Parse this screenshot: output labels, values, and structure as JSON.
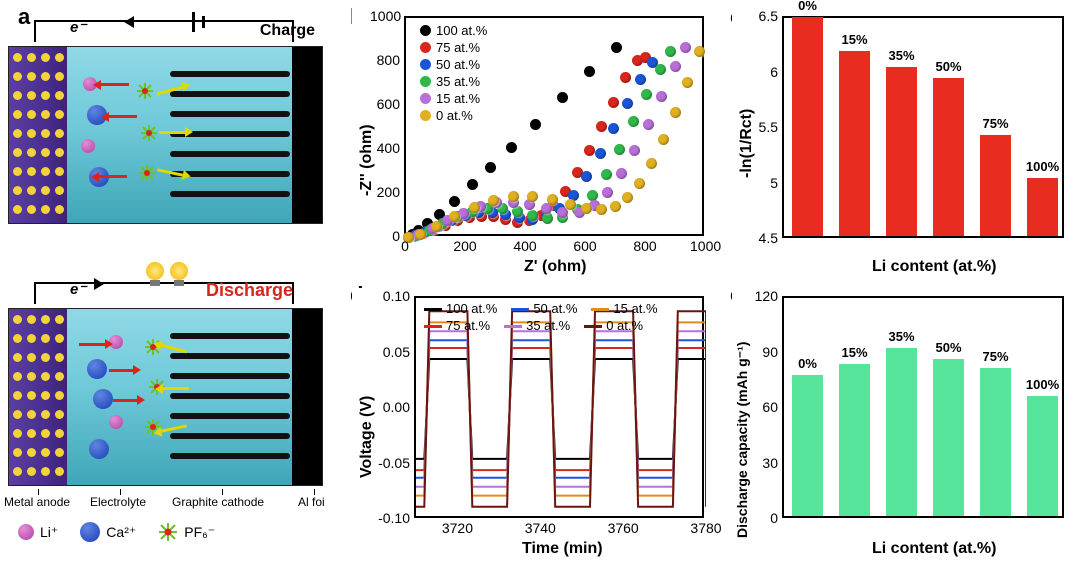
{
  "panel_labels": {
    "a": "a",
    "b": "b",
    "c": "c",
    "d": "d",
    "e": "e"
  },
  "panel_a": {
    "e_minus": "e⁻",
    "charge_text": "Charge",
    "discharge_text": "Discharge",
    "bottom_labels": {
      "anode": "Metal anode",
      "electrolyte": "Electrolyte",
      "cathode": "Graphite cathode",
      "al": "Al foi"
    },
    "legend": {
      "li": "Li⁺",
      "ca": "Ca²⁺",
      "pf6": "PF₆⁻"
    },
    "colors": {
      "anode": "#4b2f90",
      "electrolyte": "#6fc9d8",
      "al": "#000000",
      "li": "#b23fa6",
      "ca": "#1a3db8",
      "pf6_center": "#d8261c",
      "pf6_arm": "#6bc22a",
      "arrow_yellow": "#e0d800",
      "arrow_red": "#d8261c"
    }
  },
  "panel_b": {
    "type": "scatter-nyquist",
    "xlabel": "Z' (ohm)",
    "ylabel": "-Z'' (ohm)",
    "xlim": [
      0,
      1000
    ],
    "ylim": [
      0,
      1000
    ],
    "xticks": [
      0,
      200,
      400,
      600,
      800,
      1000
    ],
    "yticks": [
      0,
      200,
      400,
      600,
      800,
      1000
    ],
    "series": [
      {
        "name": "100 at.%",
        "color": "#000000",
        "points": [
          [
            5,
            5
          ],
          [
            20,
            18
          ],
          [
            40,
            38
          ],
          [
            70,
            68
          ],
          [
            110,
            110
          ],
          [
            160,
            170
          ],
          [
            220,
            245
          ],
          [
            280,
            325
          ],
          [
            350,
            415
          ],
          [
            430,
            520
          ],
          [
            520,
            640
          ],
          [
            610,
            760
          ],
          [
            700,
            870
          ]
        ]
      },
      {
        "name": "75 at.%",
        "color": "#d8261c",
        "points": [
          [
            5,
            3
          ],
          [
            25,
            10
          ],
          [
            55,
            22
          ],
          [
            90,
            40
          ],
          [
            130,
            60
          ],
          [
            170,
            80
          ],
          [
            210,
            95
          ],
          [
            250,
            102
          ],
          [
            290,
            98
          ],
          [
            330,
            85
          ],
          [
            370,
            75
          ],
          [
            410,
            80
          ],
          [
            450,
            105
          ],
          [
            490,
            150
          ],
          [
            530,
            215
          ],
          [
            570,
            300
          ],
          [
            610,
            400
          ],
          [
            650,
            510
          ],
          [
            690,
            620
          ],
          [
            730,
            730
          ],
          [
            770,
            810
          ],
          [
            795,
            825
          ]
        ]
      },
      {
        "name": "50 at.%",
        "color": "#1a55d8",
        "points": [
          [
            5,
            3
          ],
          [
            30,
            12
          ],
          [
            65,
            30
          ],
          [
            105,
            55
          ],
          [
            150,
            82
          ],
          [
            195,
            105
          ],
          [
            240,
            118
          ],
          [
            285,
            120
          ],
          [
            330,
            110
          ],
          [
            375,
            95
          ],
          [
            420,
            88
          ],
          [
            465,
            100
          ],
          [
            510,
            135
          ],
          [
            555,
            195
          ],
          [
            600,
            280
          ],
          [
            645,
            385
          ],
          [
            690,
            500
          ],
          [
            735,
            615
          ],
          [
            780,
            725
          ],
          [
            820,
            800
          ]
        ]
      },
      {
        "name": "35 at.%",
        "color": "#2fb84a",
        "points": [
          [
            5,
            3
          ],
          [
            35,
            15
          ],
          [
            75,
            38
          ],
          [
            120,
            68
          ],
          [
            170,
            100
          ],
          [
            220,
            125
          ],
          [
            270,
            138
          ],
          [
            320,
            138
          ],
          [
            370,
            125
          ],
          [
            420,
            105
          ],
          [
            470,
            90
          ],
          [
            520,
            95
          ],
          [
            570,
            130
          ],
          [
            620,
            195
          ],
          [
            665,
            290
          ],
          [
            710,
            405
          ],
          [
            755,
            530
          ],
          [
            800,
            655
          ],
          [
            845,
            770
          ],
          [
            880,
            850
          ]
        ]
      },
      {
        "name": "15 at.%",
        "color": "#b86fd8",
        "points": [
          [
            5,
            3
          ],
          [
            40,
            18
          ],
          [
            85,
            45
          ],
          [
            135,
            80
          ],
          [
            190,
            115
          ],
          [
            245,
            145
          ],
          [
            300,
            162
          ],
          [
            355,
            165
          ],
          [
            410,
            155
          ],
          [
            465,
            135
          ],
          [
            520,
            118
          ],
          [
            575,
            120
          ],
          [
            625,
            150
          ],
          [
            670,
            210
          ],
          [
            715,
            295
          ],
          [
            760,
            400
          ],
          [
            805,
            520
          ],
          [
            850,
            645
          ],
          [
            895,
            780
          ],
          [
            930,
            870
          ]
        ]
      },
      {
        "name": "0 at.%",
        "color": "#e0b020",
        "points": [
          [
            5,
            3
          ],
          [
            45,
            20
          ],
          [
            100,
            55
          ],
          [
            160,
            98
          ],
          [
            225,
            140
          ],
          [
            290,
            172
          ],
          [
            355,
            190
          ],
          [
            420,
            192
          ],
          [
            485,
            178
          ],
          [
            545,
            155
          ],
          [
            600,
            135
          ],
          [
            650,
            130
          ],
          [
            695,
            145
          ],
          [
            735,
            185
          ],
          [
            775,
            250
          ],
          [
            815,
            340
          ],
          [
            855,
            450
          ],
          [
            895,
            575
          ],
          [
            935,
            710
          ],
          [
            975,
            850
          ]
        ]
      }
    ]
  },
  "panel_c": {
    "type": "bar",
    "xlabel": "Li content (at.%)",
    "ylabel": "-ln(1/Rct)",
    "ylim": [
      4.5,
      6.5
    ],
    "yticks": [
      4.5,
      5.0,
      5.5,
      6.0,
      6.5
    ],
    "bar_color": "#e82c1f",
    "categories": [
      "0%",
      "15%",
      "35%",
      "50%",
      "75%",
      "100%"
    ],
    "values": [
      6.47,
      6.17,
      6.02,
      5.92,
      5.41,
      5.02
    ]
  },
  "panel_d": {
    "type": "line",
    "xlabel": "Time (min)",
    "ylabel": "Voltage (V)",
    "xlim": [
      3710,
      3780
    ],
    "xticks": [
      3720,
      3740,
      3760,
      3780
    ],
    "ylim": [
      -0.1,
      0.1
    ],
    "yticks": [
      -0.1,
      -0.05,
      0.0,
      0.05,
      0.1
    ],
    "legend": [
      {
        "name": "100 at.%",
        "color": "#000000"
      },
      {
        "name": "75 at.%",
        "color": "#d8261c"
      },
      {
        "name": "50 at.%",
        "color": "#1a55d8"
      },
      {
        "name": "35 at.%",
        "color": "#b86fd8"
      },
      {
        "name": "15 at.%",
        "color": "#e08a20"
      },
      {
        "name": "0 at.%",
        "color": "#6a1410"
      }
    ],
    "series": [
      {
        "color": "#000000",
        "hi": 0.045,
        "lo": -0.045
      },
      {
        "color": "#d8261c",
        "hi": 0.055,
        "lo": -0.055
      },
      {
        "color": "#1a55d8",
        "hi": 0.062,
        "lo": -0.062
      },
      {
        "color": "#b86fd8",
        "hi": 0.07,
        "lo": -0.07
      },
      {
        "color": "#e08a20",
        "hi": 0.078,
        "lo": -0.078
      },
      {
        "color": "#6a1410",
        "hi": 0.088,
        "lo": -0.088
      }
    ],
    "period": 20,
    "duty": 0.52,
    "rise": 1.2
  },
  "panel_e": {
    "type": "bar",
    "xlabel": "Li content (at.%)",
    "ylabel": "Discharge capacity (mAh g⁻¹)",
    "ylim": [
      0,
      120
    ],
    "yticks": [
      0,
      30,
      60,
      90,
      120
    ],
    "bar_color": "#57e59b",
    "categories": [
      "0%",
      "15%",
      "35%",
      "50%",
      "75%",
      "100%"
    ],
    "values": [
      76,
      82,
      91,
      85,
      80,
      65
    ]
  }
}
